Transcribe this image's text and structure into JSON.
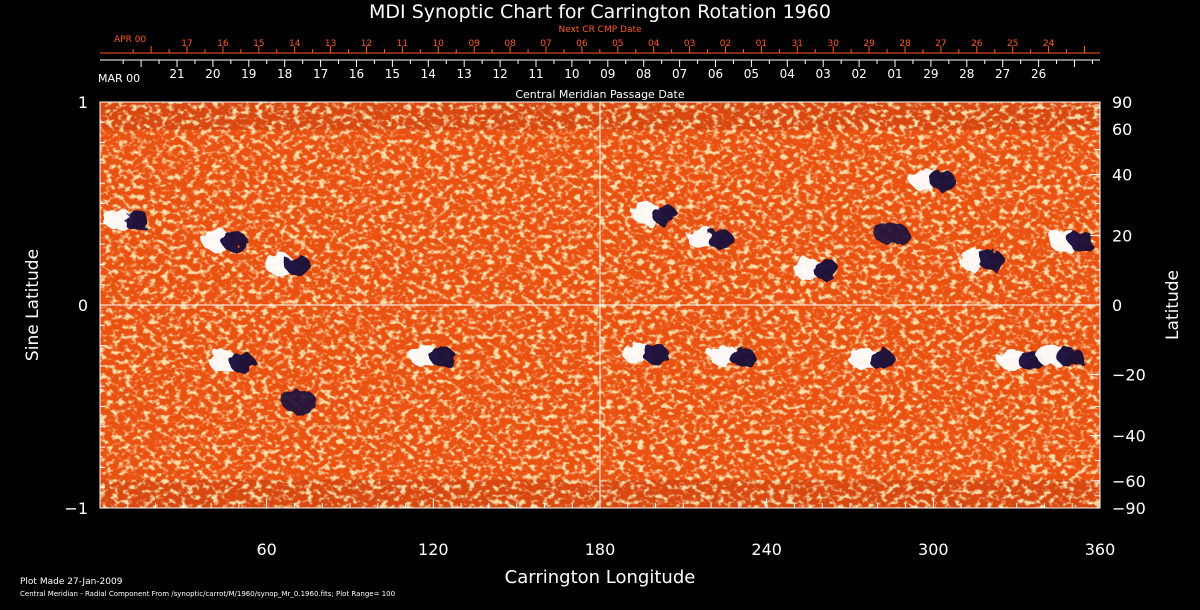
{
  "chart_data": {
    "type": "heatmap",
    "title": "MDI Synoptic Chart for Carrington Rotation 1960",
    "xlabel": "Carrington Longitude",
    "ylabel_left": "Sine Latitude",
    "ylabel_right": "Latitude",
    "xlim": [
      0,
      360
    ],
    "ylim": [
      -1,
      1
    ],
    "x_ticks": [
      "60",
      "120",
      "180",
      "240",
      "300",
      "360"
    ],
    "y_ticks_left": [
      "1",
      "0",
      "−1"
    ],
    "y_ticks_right": [
      "90",
      "60",
      "40",
      "20",
      "0",
      "−20",
      "−40",
      "−60",
      "−90"
    ],
    "top_axis_red": {
      "label": "Next CR CMP Date",
      "month_label": "APR 00",
      "dates": [
        "17",
        "16",
        "15",
        "14",
        "13",
        "12",
        "11",
        "10",
        "09",
        "08",
        "07",
        "06",
        "05",
        "04",
        "03",
        "02",
        "01",
        "31",
        "30",
        "29",
        "28",
        "27",
        "26",
        "25",
        "24"
      ]
    },
    "top_axis_white": {
      "label": "Central Meridian Passage Date",
      "month_label": "MAR 00",
      "dates": [
        "21",
        "20",
        "19",
        "18",
        "17",
        "16",
        "15",
        "14",
        "13",
        "12",
        "11",
        "10",
        "09",
        "08",
        "07",
        "06",
        "05",
        "04",
        "03",
        "02",
        "01",
        "29",
        "28",
        "27",
        "26"
      ]
    },
    "guide_lines": {
      "longitude": 180,
      "sine_latitude": 0
    },
    "colors": {
      "background": "#ea5212",
      "positive": "#ffffff",
      "negative": "#140a3a",
      "text_red": "#ff5a1e"
    },
    "active_regions": [
      {
        "lon": 10,
        "sinlat": 0.42,
        "polarity": "bipolar"
      },
      {
        "lon": 45,
        "sinlat": 0.32,
        "polarity": "bipolar"
      },
      {
        "lon": 68,
        "sinlat": 0.2,
        "polarity": "bipolar"
      },
      {
        "lon": 48,
        "sinlat": -0.28,
        "polarity": "bipolar"
      },
      {
        "lon": 120,
        "sinlat": -0.25,
        "polarity": "bipolar"
      },
      {
        "lon": 72,
        "sinlat": -0.48,
        "polarity": "negative"
      },
      {
        "lon": 200,
        "sinlat": 0.45,
        "polarity": "bipolar"
      },
      {
        "lon": 220,
        "sinlat": 0.33,
        "polarity": "bipolar"
      },
      {
        "lon": 258,
        "sinlat": 0.18,
        "polarity": "bipolar"
      },
      {
        "lon": 285,
        "sinlat": 0.35,
        "polarity": "negative"
      },
      {
        "lon": 300,
        "sinlat": 0.62,
        "polarity": "bipolar"
      },
      {
        "lon": 318,
        "sinlat": 0.22,
        "polarity": "bipolar"
      },
      {
        "lon": 350,
        "sinlat": 0.32,
        "polarity": "bipolar"
      },
      {
        "lon": 197,
        "sinlat": -0.24,
        "polarity": "bipolar"
      },
      {
        "lon": 228,
        "sinlat": -0.25,
        "polarity": "bipolar"
      },
      {
        "lon": 278,
        "sinlat": -0.26,
        "polarity": "bipolar"
      },
      {
        "lon": 332,
        "sinlat": -0.27,
        "polarity": "bipolar"
      },
      {
        "lon": 346,
        "sinlat": -0.25,
        "polarity": "bipolar"
      }
    ]
  },
  "footer": {
    "line1": "Plot Made 27-Jan-2009",
    "line2": "Central Meridian - Radial Component From /synoptic/carrot/M/1960/synop_Mr_0.1960.fits; Plot Range=  100"
  }
}
